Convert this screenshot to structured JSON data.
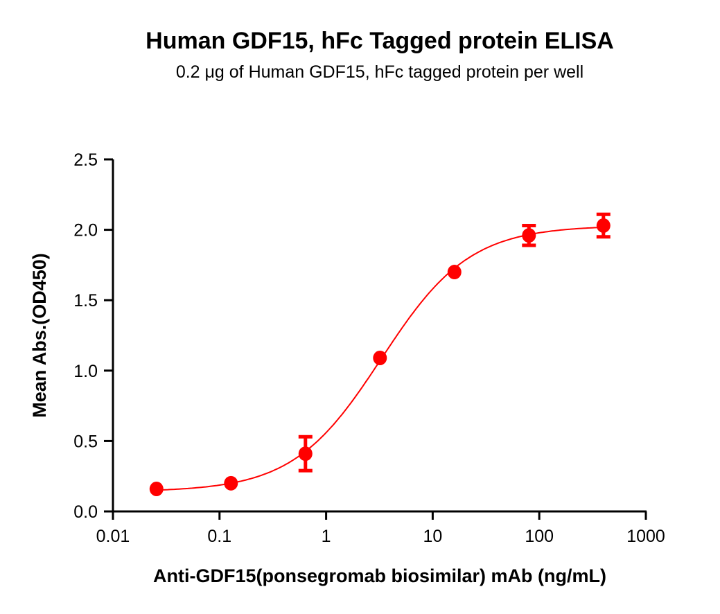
{
  "chart_data": {
    "type": "scatter",
    "title": "Human GDF15, hFc Tagged protein ELISA",
    "subtitle": "0.2 μg of Human GDF15, hFc tagged protein per well",
    "xlabel": "Anti-GDF15(ponsegromab biosimilar) mAb (ng/mL)",
    "ylabel": "Mean Abs.(OD450)",
    "xscale": "log",
    "xlim": [
      0.01,
      1000
    ],
    "ylim": [
      0,
      2.5
    ],
    "xticks": [
      "0.01",
      "0.1",
      "1",
      "10",
      "100",
      "1000"
    ],
    "yticks": [
      "0.0",
      "0.5",
      "1.0",
      "1.5",
      "2.0",
      "2.5"
    ],
    "grid": false,
    "color": "#ff0000",
    "series": [
      {
        "x": [
          0.0256,
          0.128,
          0.64,
          3.2,
          16,
          80,
          400
        ],
        "y": [
          0.16,
          0.2,
          0.41,
          1.09,
          1.7,
          1.96,
          2.03
        ],
        "err": [
          0,
          0,
          0.12,
          0,
          0,
          0.07,
          0.08
        ]
      }
    ],
    "fit": {
      "model": "4PL",
      "bottom": 0.14,
      "top": 2.03,
      "ec50": 3.3,
      "hill": 1.05
    }
  }
}
